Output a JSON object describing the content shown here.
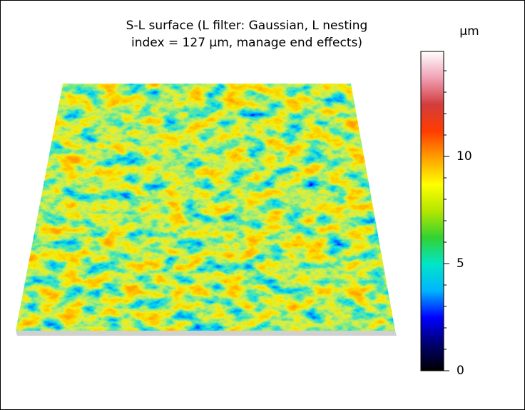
{
  "chart_data": {
    "type": "surface",
    "title": [
      "S-L surface (L filter: Gaussian, L nesting",
      "index = 127 µm, manage end effects)"
    ],
    "colorbar": {
      "label": "µm",
      "lim": [
        0,
        14.9
      ],
      "ticks": [
        0,
        5,
        10
      ],
      "minor_ticks": [
        1,
        2,
        3,
        4,
        6,
        7,
        8,
        9,
        11,
        12,
        13,
        14
      ],
      "colormap": [
        "#000000",
        "#00006e",
        "#0000ff",
        "#00b4ff",
        "#00e6c8",
        "#32d232",
        "#b4e600",
        "#ffff00",
        "#ffa000",
        "#ff3c00",
        "#d23c3c",
        "#f0a0b4",
        "#ffffff"
      ]
    }
  }
}
